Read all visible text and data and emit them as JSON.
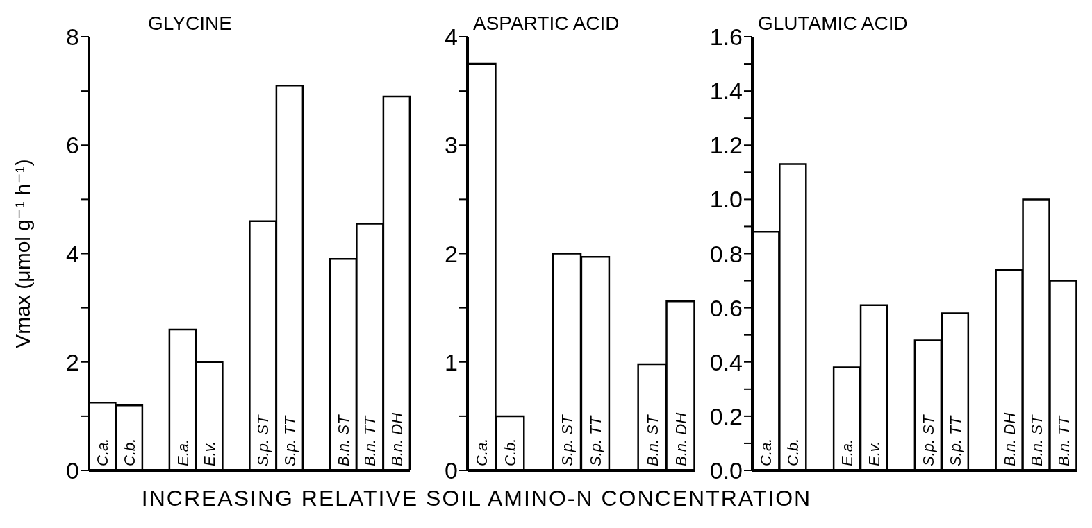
{
  "chart_data": [
    {
      "type": "bar",
      "title": "GLYCINE",
      "ylabel": "Vmax (μmol g⁻¹ h⁻¹)",
      "xlabel": "INCREASING RELATIVE SOIL AMINO-N CONCENTRATION",
      "categories": [
        "C.a.",
        "C.b.",
        null,
        "E.a.",
        "E.v.",
        null,
        "S.p. ST",
        "S.p. TT",
        null,
        "B.n. ST",
        "B.n. TT",
        "B.n. DH"
      ],
      "values": [
        1.25,
        1.2,
        null,
        2.6,
        2.0,
        null,
        4.6,
        7.1,
        null,
        3.9,
        4.55,
        6.9
      ],
      "color": "#ffffff",
      "ylim": [
        0,
        8
      ],
      "yticks": [
        0,
        {
          "value": 1,
          "label": null
        },
        2,
        {
          "value": 3,
          "label": null
        },
        4,
        {
          "value": 5,
          "label": null
        },
        6,
        {
          "value": 7,
          "label": null
        },
        8
      ]
    },
    {
      "type": "bar",
      "title": "ASPARTIC ACID",
      "categories": [
        "C.a.",
        "C.b.",
        null,
        "S.p. ST",
        "S.p. TT",
        null,
        "B.n. ST",
        "B.n. DH"
      ],
      "values": [
        3.75,
        0.5,
        null,
        2.0,
        1.97,
        null,
        0.98,
        1.56
      ],
      "color": "#ffffff",
      "ylim": [
        0,
        4
      ],
      "yticks": [
        0,
        {
          "value": 0.5,
          "label": null
        },
        1,
        {
          "value": 1.5,
          "label": null
        },
        2,
        {
          "value": 2.5,
          "label": null
        },
        3,
        {
          "value": 3.5,
          "label": null
        },
        4
      ]
    },
    {
      "type": "bar",
      "title": "GLUTAMIC ACID",
      "categories": [
        "C.a.",
        "C.b.",
        null,
        "E.a.",
        "E.v.",
        null,
        "S.p. ST",
        "S.p. TT",
        null,
        "B.n. DH",
        "B.n. ST",
        "B.n. TT"
      ],
      "values": [
        0.88,
        1.13,
        null,
        0.38,
        0.61,
        null,
        0.48,
        0.58,
        null,
        0.74,
        1.0,
        0.7
      ],
      "color": "#ffffff",
      "ylim": [
        0,
        1.6
      ],
      "yticks": [
        {
          "value": 0,
          "label": "0.0"
        },
        {
          "value": 0.1,
          "label": null
        },
        0.2,
        {
          "value": 0.3,
          "label": null
        },
        0.4,
        {
          "value": 0.5,
          "label": null
        },
        0.6,
        {
          "value": 0.7,
          "label": null
        },
        0.8,
        {
          "value": 0.9,
          "label": null
        },
        {
          "value": 1,
          "label": "1.0"
        },
        {
          "value": 1.1,
          "label": null
        },
        1.2,
        {
          "value": 1.3,
          "label": null
        },
        1.4,
        {
          "value": 1.5,
          "label": null
        },
        1.6
      ]
    }
  ]
}
